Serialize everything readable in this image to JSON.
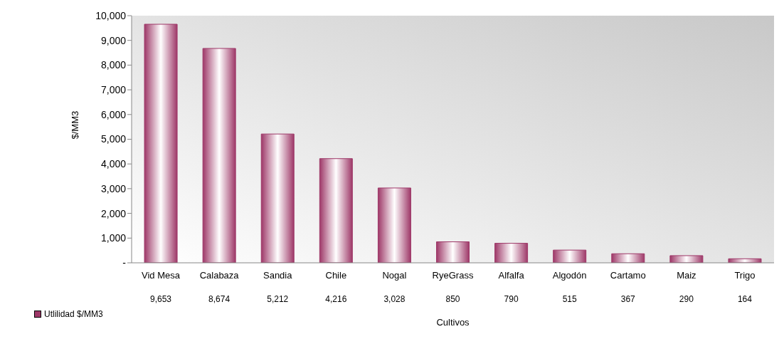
{
  "chart_data": {
    "type": "bar",
    "xlabel": "Cultivos",
    "ylabel": "$/MM3",
    "categories": [
      "Vid Mesa",
      "Calabaza",
      "Sandia",
      "Chile",
      "Nogal",
      "RyeGrass",
      "Alfalfa",
      "Algodón",
      "Cartamo",
      "Maiz",
      "Trigo"
    ],
    "series": [
      {
        "name": "Utlilidad $/MM3",
        "color": "#9e3868",
        "values": [
          9653,
          8674,
          5212,
          4216,
          3028,
          850,
          790,
          515,
          367,
          290,
          164
        ],
        "value_labels": [
          "9,653",
          "8,674",
          "5,212",
          "4,216",
          "3,028",
          "850",
          "790",
          "515",
          "367",
          "290",
          "164"
        ]
      }
    ],
    "ylim": [
      0,
      10000
    ],
    "yticks": [
      {
        "value": 0,
        "label": "-"
      },
      {
        "value": 1000,
        "label": "1,000"
      },
      {
        "value": 2000,
        "label": "2,000"
      },
      {
        "value": 3000,
        "label": "3,000"
      },
      {
        "value": 4000,
        "label": "4,000"
      },
      {
        "value": 5000,
        "label": "5,000"
      },
      {
        "value": 6000,
        "label": "6,000"
      },
      {
        "value": 7000,
        "label": "7,000"
      },
      {
        "value": 8000,
        "label": "8,000"
      },
      {
        "value": 9000,
        "label": "9,000"
      },
      {
        "value": 10000,
        "label": "10,000"
      }
    ],
    "legend": "bottom left"
  }
}
